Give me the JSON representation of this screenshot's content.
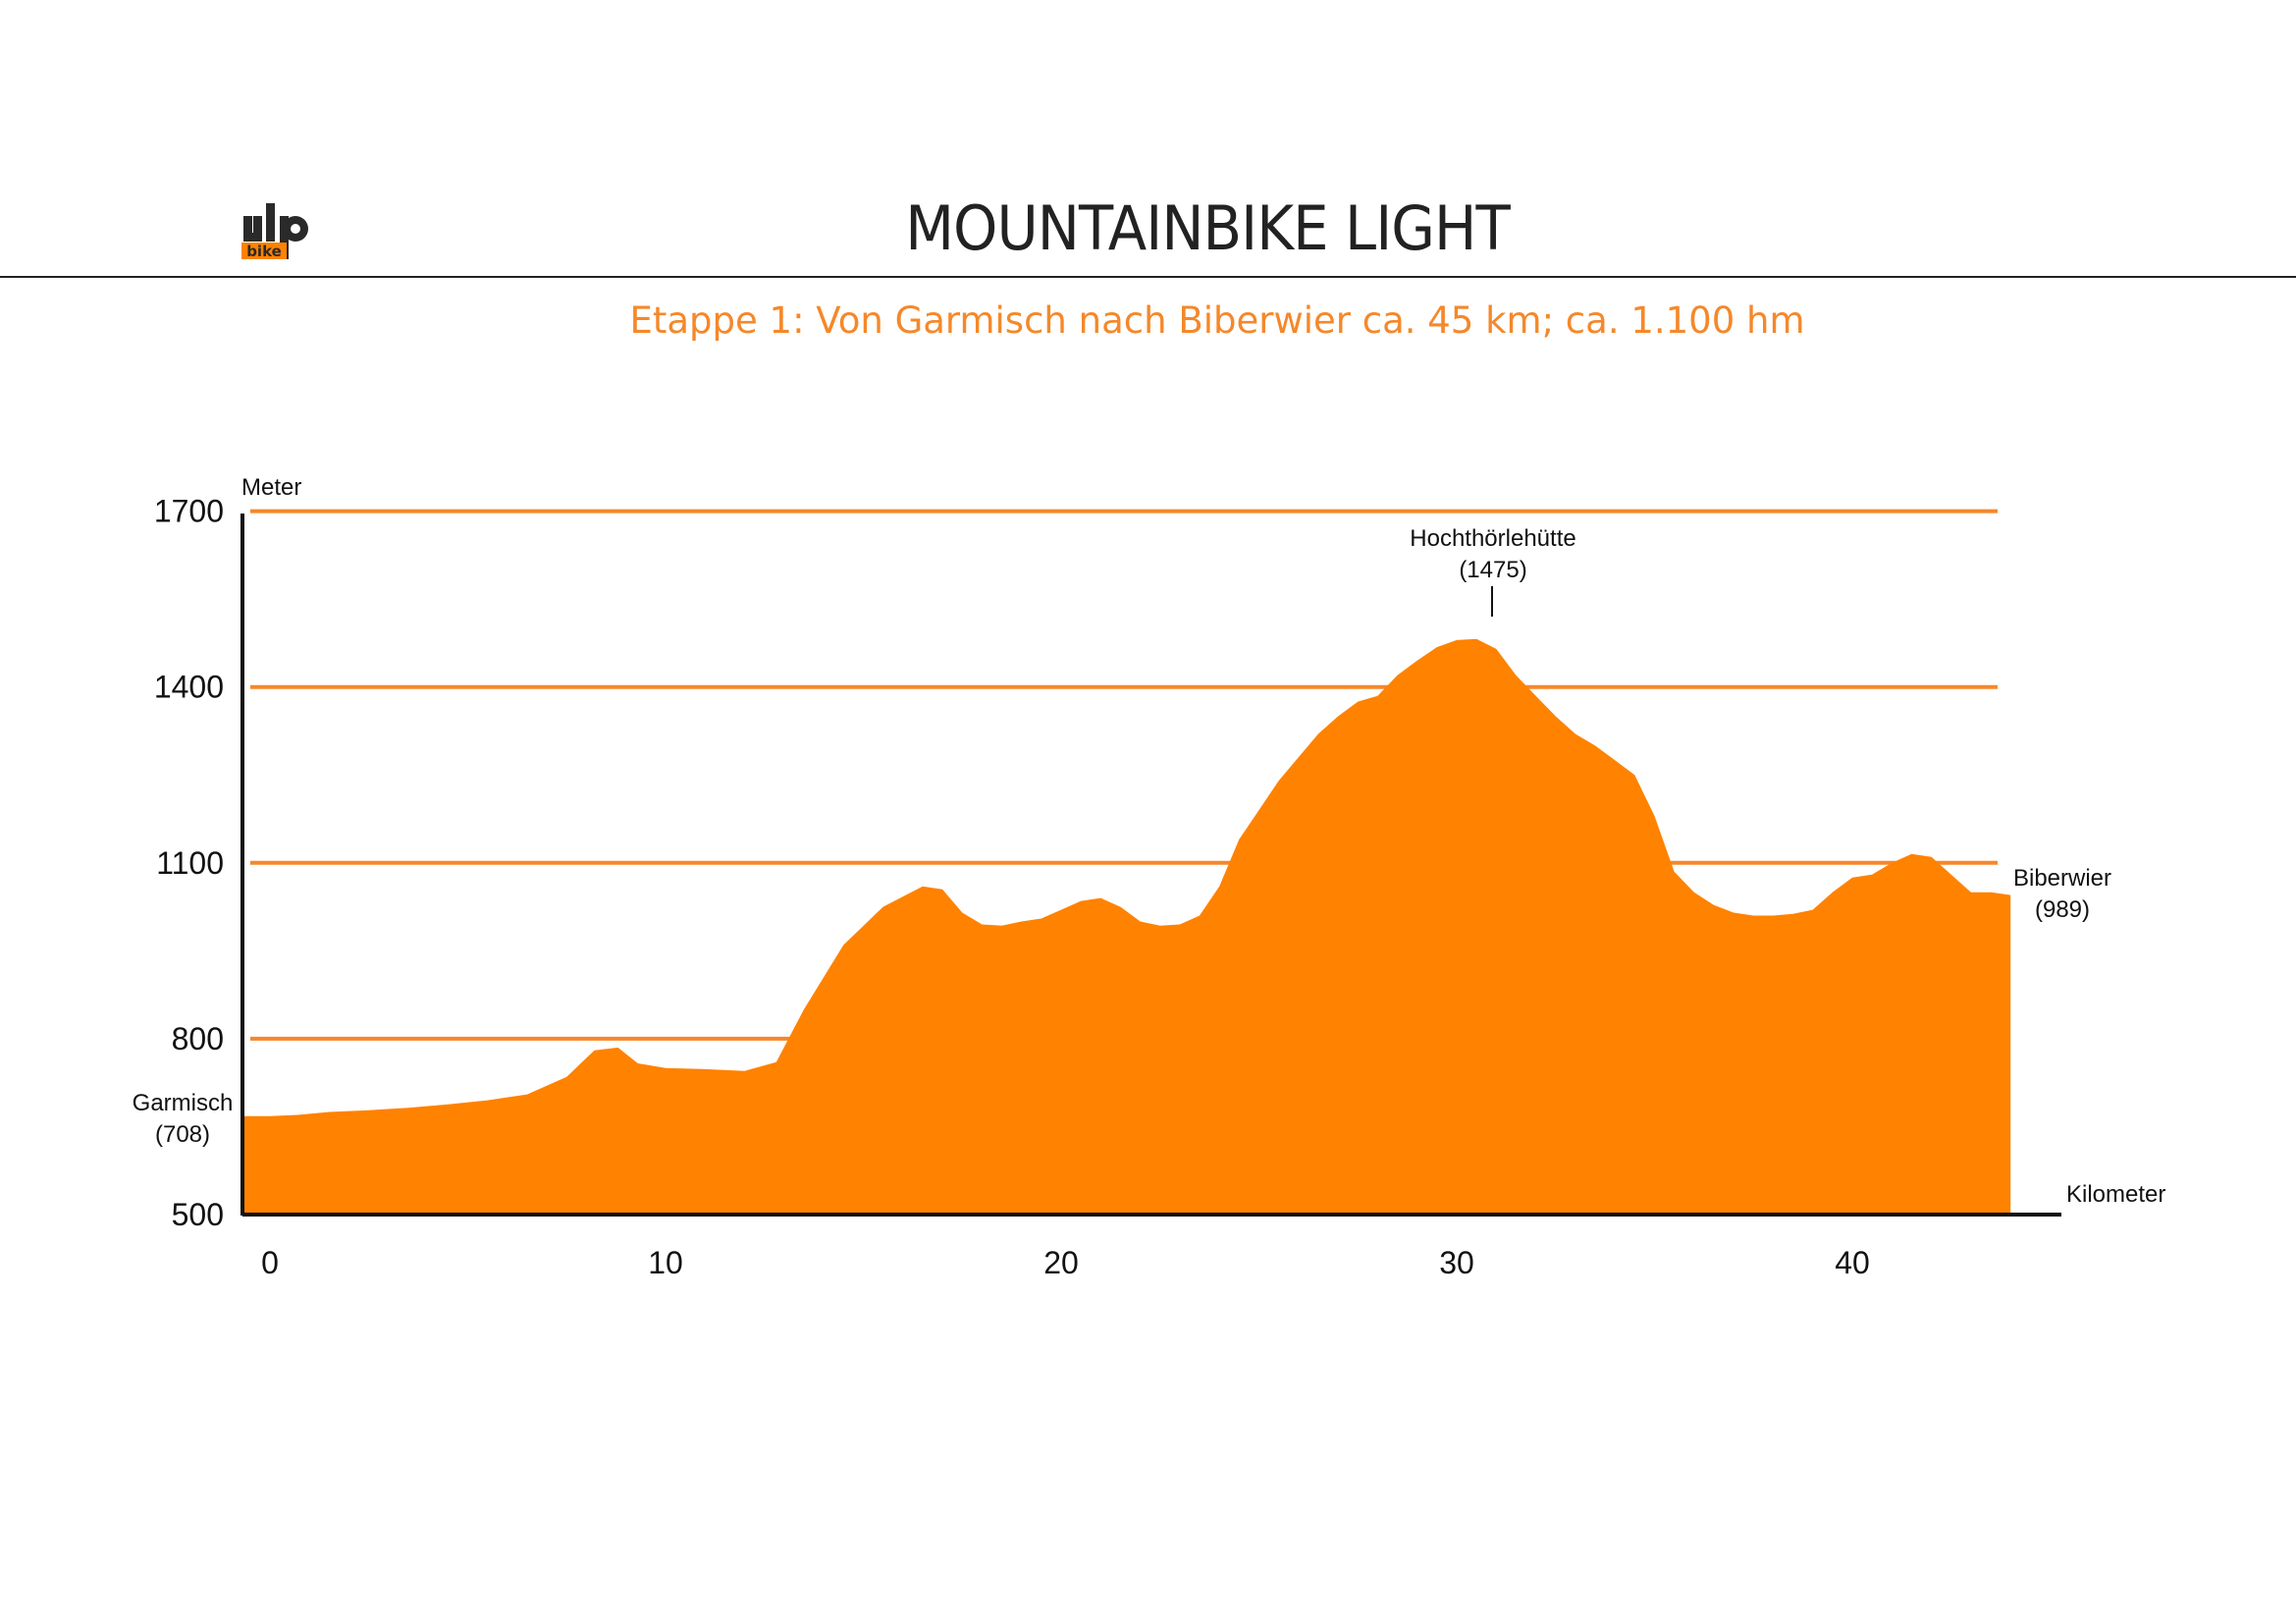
{
  "header": {
    "logo_text": "ulp",
    "logo_subtext": "bike",
    "title": "MOUNTAINBIKE LIGHT",
    "subtitle": "Etappe 1: Von Garmisch nach Biberwier ca. 45 km; ca. 1.100 hm"
  },
  "colors": {
    "accent": "#ff8200",
    "gridline": "#f5882a",
    "subtitle": "#f5882a",
    "axis": "#111111"
  },
  "chart_data": {
    "type": "area",
    "title": "",
    "xlabel": "Kilometer",
    "ylabel": "Meter",
    "xlim": [
      0,
      45
    ],
    "ylim": [
      500,
      1700
    ],
    "x_ticks": [
      0,
      10,
      20,
      30,
      40
    ],
    "y_ticks": [
      500,
      800,
      1100,
      1400,
      1700
    ],
    "y_gridlines": [
      800,
      1100,
      1400,
      1700
    ],
    "grid": true,
    "legend": "none",
    "series": [
      {
        "x": [
          0,
          0.7,
          1.5,
          2.5,
          3.5,
          4.5,
          5.5,
          6.5,
          7.5,
          8.2,
          8.8,
          9.3,
          10,
          11,
          12,
          12.8,
          13.5,
          14.5,
          15.5,
          16.5,
          17,
          17.5,
          18,
          18.5,
          19,
          19.5,
          20,
          20.5,
          21,
          21.5,
          22,
          22.5,
          23,
          23.5,
          24,
          24.5,
          25,
          25.5,
          26,
          26.5,
          27,
          27.5,
          28,
          28.5,
          29,
          29.5,
          30,
          30.5,
          31,
          31.5,
          32,
          32.5,
          33,
          33.5,
          34,
          34.5,
          35,
          35.5,
          36,
          36.5,
          37,
          37.5,
          38,
          38.5,
          39,
          39.5,
          40,
          40.5,
          41,
          41.5,
          42,
          42.5,
          43,
          43.5,
          44
        ],
        "y": [
          668,
          670,
          675,
          678,
          682,
          688,
          695,
          705,
          735,
          780,
          785,
          758,
          750,
          748,
          745,
          760,
          850,
          960,
          1025,
          1060,
          1055,
          1015,
          995,
          993,
          1000,
          1005,
          1020,
          1035,
          1040,
          1025,
          1000,
          993,
          995,
          1010,
          1060,
          1140,
          1190,
          1240,
          1280,
          1320,
          1350,
          1375,
          1385,
          1420,
          1445,
          1468,
          1480,
          1482,
          1465,
          1420,
          1385,
          1350,
          1320,
          1300,
          1275,
          1250,
          1180,
          1085,
          1050,
          1028,
          1015,
          1010,
          1010,
          1013,
          1020,
          1050,
          1075,
          1080,
          1100,
          1115,
          1110,
          1080,
          1050,
          1050,
          1045
        ]
      }
    ],
    "annotations": [
      {
        "name": "Garmisch",
        "value": "(708)"
      },
      {
        "name": "Hochthörlehütte",
        "value": "(1475)"
      },
      {
        "name": "Biberwier",
        "value": "(989)"
      }
    ]
  }
}
